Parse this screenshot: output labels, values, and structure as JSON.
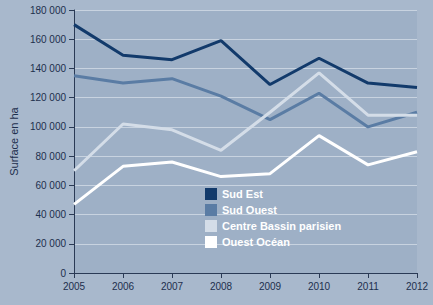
{
  "chart_data": {
    "type": "line",
    "y_label": "Surface en ha",
    "categories": [
      "2005",
      "2006",
      "2007",
      "2008",
      "2009",
      "2010",
      "2011",
      "2012"
    ],
    "series": [
      {
        "name": "Sud Est",
        "color": "#123a6b",
        "values": [
          170000,
          149000,
          146000,
          159000,
          129000,
          147000,
          130000,
          127000
        ]
      },
      {
        "name": "Sud Ouest",
        "color": "#5a7ca4",
        "values": [
          135000,
          130000,
          133000,
          121000,
          105000,
          123000,
          100000,
          110000
        ]
      },
      {
        "name": "Centre Bassin parisien",
        "color": "#d4dde8",
        "values": [
          70000,
          102000,
          98000,
          84000,
          110000,
          137000,
          108000,
          108000
        ]
      },
      {
        "name": "Ouest Océan",
        "color": "#ffffff",
        "values": [
          47000,
          73000,
          76000,
          66000,
          68000,
          94000,
          74000,
          83000
        ]
      }
    ],
    "ylim": [
      0,
      180000
    ],
    "yticks": [
      0,
      {
        "value": 20000,
        "label": "20 000"
      },
      {
        "value": 40000,
        "label": "40 000"
      },
      {
        "value": 60000,
        "label": "60 000"
      },
      {
        "value": 80000,
        "label": "80 000"
      },
      {
        "value": 100000,
        "label": "100 000"
      },
      {
        "value": 120000,
        "label": "120 000"
      },
      {
        "value": 140000,
        "label": "140 000"
      },
      {
        "value": 160000,
        "label": "160 000"
      },
      {
        "value": 180000,
        "label": "180 000"
      }
    ],
    "grid": true,
    "legend": "lower right"
  }
}
